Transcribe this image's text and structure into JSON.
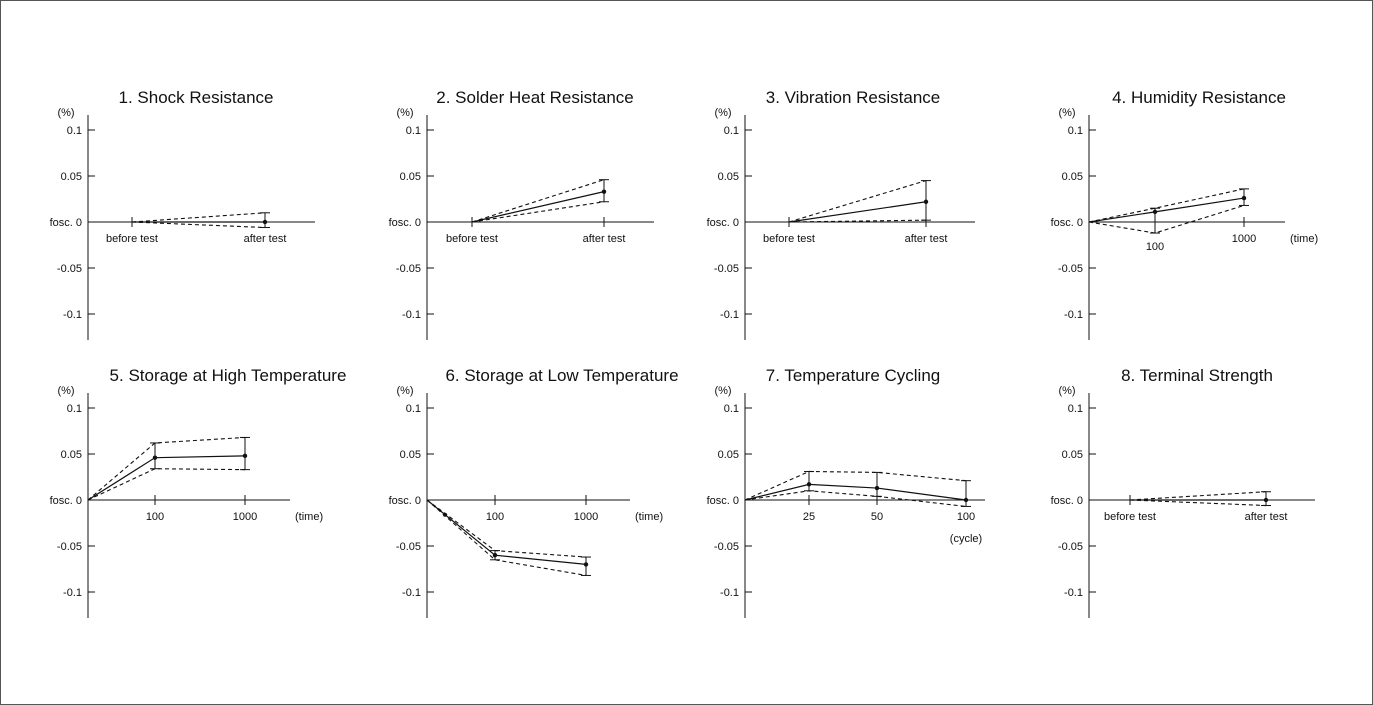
{
  "chart_data": [
    {
      "type": "line",
      "title": "1. Shock Resistance",
      "y_unit": "(%)",
      "y_ticks": [
        "0.1",
        "0.05",
        "fosc. 0",
        "-0.05",
        "-0.1"
      ],
      "ylim": [
        -0.1,
        0.1
      ],
      "x_categories": [
        "before test",
        "after test"
      ],
      "x_unit": "",
      "series": [
        {
          "points": [
            {
              "x": "before test",
              "y": 0
            },
            {
              "x": "after test",
              "y": 0.0
            }
          ]
        },
        {
          "points": [
            {
              "x": "before test",
              "y": 0
            },
            {
              "x": "after test",
              "y": 0.01
            }
          ]
        },
        {
          "points": [
            {
              "x": "before test",
              "y": 0
            },
            {
              "x": "after test",
              "y": -0.006
            }
          ]
        }
      ]
    },
    {
      "type": "line",
      "title": "2. Solder Heat Resistance",
      "y_unit": "(%)",
      "y_ticks": [
        "0.1",
        "0.05",
        "fosc. 0",
        "-0.05",
        "-0.1"
      ],
      "ylim": [
        -0.1,
        0.1
      ],
      "x_categories": [
        "before test",
        "after test"
      ],
      "x_unit": "",
      "series": [
        {
          "points": [
            {
              "x": "before test",
              "y": 0
            },
            {
              "x": "after test",
              "y": 0.033
            }
          ]
        },
        {
          "points": [
            {
              "x": "before test",
              "y": 0
            },
            {
              "x": "after test",
              "y": 0.046
            }
          ]
        },
        {
          "points": [
            {
              "x": "before test",
              "y": 0
            },
            {
              "x": "after test",
              "y": 0.022
            }
          ]
        }
      ]
    },
    {
      "type": "line",
      "title": "3. Vibration Resistance",
      "y_unit": "(%)",
      "y_ticks": [
        "0.1",
        "0.05",
        "fosc. 0",
        "-0.05",
        "-0.1"
      ],
      "ylim": [
        -0.1,
        0.1
      ],
      "x_categories": [
        "before test",
        "after test"
      ],
      "x_unit": "",
      "series": [
        {
          "points": [
            {
              "x": "before test",
              "y": 0
            },
            {
              "x": "after test",
              "y": 0.022
            }
          ]
        },
        {
          "points": [
            {
              "x": "before test",
              "y": 0
            },
            {
              "x": "after test",
              "y": 0.045
            }
          ]
        },
        {
          "points": [
            {
              "x": "before test",
              "y": 0
            },
            {
              "x": "after test",
              "y": 0.002
            }
          ]
        }
      ]
    },
    {
      "type": "line",
      "title": "4. Humidity Resistance",
      "y_unit": "(%)",
      "y_ticks": [
        "0.1",
        "0.05",
        "fosc. 0",
        "-0.05",
        "-0.1"
      ],
      "ylim": [
        -0.1,
        0.1
      ],
      "x_categories": [
        "",
        "100",
        "1000"
      ],
      "x_unit": "(time)",
      "series": [
        {
          "points": [
            {
              "x": "",
              "y": 0
            },
            {
              "x": "100",
              "y": 0.011
            },
            {
              "x": "1000",
              "y": 0.026
            }
          ]
        },
        {
          "points": [
            {
              "x": "",
              "y": 0
            },
            {
              "x": "100",
              "y": 0.015
            },
            {
              "x": "1000",
              "y": 0.036
            }
          ]
        },
        {
          "points": [
            {
              "x": "",
              "y": 0
            },
            {
              "x": "100",
              "y": -0.012
            },
            {
              "x": "1000",
              "y": 0.018
            }
          ]
        }
      ]
    },
    {
      "type": "line",
      "title": "5. Storage at High Temperature",
      "y_unit": "(%)",
      "y_ticks": [
        "0.1",
        "0.05",
        "fosc. 0",
        "-0.05",
        "-0.1"
      ],
      "ylim": [
        -0.1,
        0.1
      ],
      "x_categories": [
        "",
        "100",
        "1000"
      ],
      "x_unit": "(time)",
      "series": [
        {
          "points": [
            {
              "x": "",
              "y": 0
            },
            {
              "x": "100",
              "y": 0.046
            },
            {
              "x": "1000",
              "y": 0.048
            }
          ]
        },
        {
          "points": [
            {
              "x": "",
              "y": 0
            },
            {
              "x": "100",
              "y": 0.062
            },
            {
              "x": "1000",
              "y": 0.068
            }
          ]
        },
        {
          "points": [
            {
              "x": "",
              "y": 0
            },
            {
              "x": "100",
              "y": 0.034
            },
            {
              "x": "1000",
              "y": 0.033
            }
          ]
        }
      ]
    },
    {
      "type": "line",
      "title": "6. Storage at Low Temperature",
      "y_unit": "(%)",
      "y_ticks": [
        "0.1",
        "0.05",
        "fosc. 0",
        "-0.05",
        "-0.1"
      ],
      "ylim": [
        -0.1,
        0.1
      ],
      "x_categories": [
        "",
        "100",
        "1000"
      ],
      "x_unit": "(time)",
      "series": [
        {
          "points": [
            {
              "x": "",
              "y": 0
            },
            {
              "x": "100",
              "y": -0.06
            },
            {
              "x": "1000",
              "y": -0.07
            }
          ]
        },
        {
          "points": [
            {
              "x": "",
              "y": 0
            },
            {
              "x": "100",
              "y": -0.055
            },
            {
              "x": "1000",
              "y": -0.062
            }
          ]
        },
        {
          "points": [
            {
              "x": "",
              "y": 0
            },
            {
              "x": "100",
              "y": -0.065
            },
            {
              "x": "1000",
              "y": -0.082
            }
          ]
        }
      ]
    },
    {
      "type": "line",
      "title": "7. Temperature Cycling",
      "y_unit": "(%)",
      "y_ticks": [
        "0.1",
        "0.05",
        "fosc. 0",
        "-0.05",
        "-0.1"
      ],
      "ylim": [
        -0.1,
        0.1
      ],
      "x_categories": [
        "",
        "25",
        "50",
        "100"
      ],
      "x_unit": "(cycle)",
      "series": [
        {
          "points": [
            {
              "x": "",
              "y": 0
            },
            {
              "x": "25",
              "y": 0.017
            },
            {
              "x": "50",
              "y": 0.013
            },
            {
              "x": "100",
              "y": 0.0
            }
          ]
        },
        {
          "points": [
            {
              "x": "",
              "y": 0
            },
            {
              "x": "25",
              "y": 0.031
            },
            {
              "x": "50",
              "y": 0.03
            },
            {
              "x": "100",
              "y": 0.021
            }
          ]
        },
        {
          "points": [
            {
              "x": "",
              "y": 0
            },
            {
              "x": "25",
              "y": 0.01
            },
            {
              "x": "50",
              "y": 0.004
            },
            {
              "x": "100",
              "y": -0.007
            }
          ]
        }
      ]
    },
    {
      "type": "line",
      "title": "8. Terminal Strength",
      "y_unit": "(%)",
      "y_ticks": [
        "0.1",
        "0.05",
        "fosc. 0",
        "-0.05",
        "-0.1"
      ],
      "ylim": [
        -0.1,
        0.1
      ],
      "x_categories": [
        "before test",
        "after test"
      ],
      "x_unit": "",
      "series": [
        {
          "points": [
            {
              "x": "before test",
              "y": 0
            },
            {
              "x": "after test",
              "y": 0.0
            }
          ]
        },
        {
          "points": [
            {
              "x": "before test",
              "y": 0
            },
            {
              "x": "after test",
              "y": 0.009
            }
          ]
        },
        {
          "points": [
            {
              "x": "before test",
              "y": 0
            },
            {
              "x": "after test",
              "y": -0.006
            }
          ]
        }
      ]
    }
  ]
}
